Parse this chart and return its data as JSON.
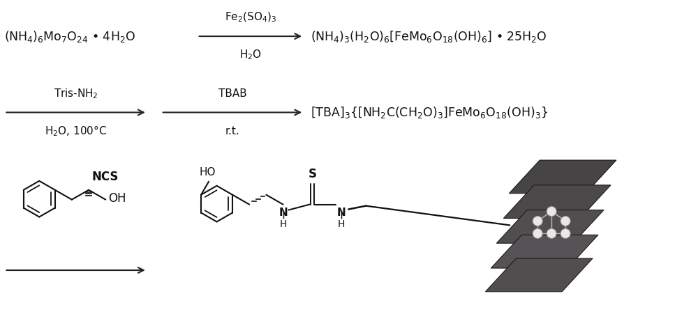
{
  "bg_color": "#ffffff",
  "text_color": "#111111",
  "arrow_color": "#222222",
  "fig_width": 10.0,
  "fig_height": 4.61,
  "reactant1": "(NH$_4$)$_6$Mo$_7$O$_{24}$ • 4H$_2$O",
  "arrow1_above": "Fe$_2$(SO$_4$)$_3$",
  "arrow1_below": "H$_2$O",
  "product1": "(NH$_4$)$_3$(H$_2$O)$_6$[FeMo$_6$O$_{18}$(OH)$_6$] • 25H$_2$O",
  "arrow2a_above": "Tris-NH$_2$",
  "arrow2a_below": "H$_2$O, 100°C",
  "arrow2b_above": "TBAB",
  "arrow2b_below": "r.t.",
  "product2": "[TBA]$_3${[NH$_2$C(CH$_2$O)$_3$]FeMo$_6$O$_{18}$(OH)$_3$}",
  "font_size_main": 12.5,
  "font_size_label": 11,
  "font_size_struct": 11
}
